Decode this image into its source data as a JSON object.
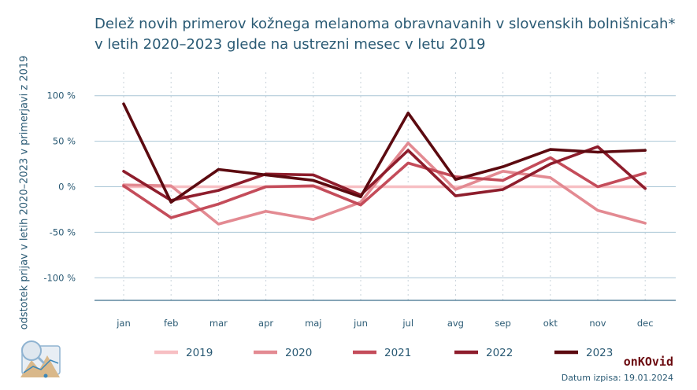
{
  "title_line1": "Delež novih primerov kožnega melanoma obravnavanih v slovenskih bolnišnicah*",
  "title_line2": "v letih 2020–2023 glede na ustrezni mesec v letu 2019",
  "brand": "onKOvid",
  "date_text": "Datum izpisa: 19.01.2024",
  "chart_data": {
    "type": "line",
    "title": "Delež novih primerov kožnega melanoma obravnavanih v slovenskih bolnišnicah* v letih 2020–2023 glede na ustrezni mesec v letu 2019",
    "xlabel": "",
    "ylabel": "odstotek prijav v letih 2020–2023 v primerjavi z 2019",
    "categories": [
      "jan",
      "feb",
      "mar",
      "apr",
      "maj",
      "jun",
      "jul",
      "avg",
      "sep",
      "okt",
      "nov",
      "dec"
    ],
    "ylim": [
      -125,
      110
    ],
    "yticks": [
      100,
      50,
      0,
      -50,
      -100
    ],
    "ytick_labels": [
      "100 %",
      "50 %",
      "0 %",
      "-50 %",
      "-100 %"
    ],
    "grid": true,
    "legend_position": "bottom",
    "series": [
      {
        "name": "2019",
        "color": "#f7bfc3",
        "values": [
          0,
          0,
          0,
          0,
          0,
          0,
          0,
          0,
          0,
          0,
          0,
          0
        ]
      },
      {
        "name": "2020",
        "color": "#e38a92",
        "values": [
          2,
          1,
          -41,
          -27,
          -36,
          -17,
          48,
          -3,
          17,
          10,
          -26,
          -40
        ]
      },
      {
        "name": "2021",
        "color": "#c44c5a",
        "values": [
          1,
          -34,
          -19,
          0,
          1,
          -20,
          26,
          11,
          7,
          32,
          0,
          15
        ]
      },
      {
        "name": "2022",
        "color": "#8e1d2c",
        "values": [
          17,
          -15,
          -4,
          14,
          13,
          -9,
          40,
          -10,
          -3,
          25,
          44,
          -2
        ]
      },
      {
        "name": "2023",
        "color": "#5c0a10",
        "values": [
          91,
          -17,
          19,
          13,
          7,
          -11,
          81,
          8,
          22,
          41,
          38,
          40
        ]
      }
    ]
  }
}
